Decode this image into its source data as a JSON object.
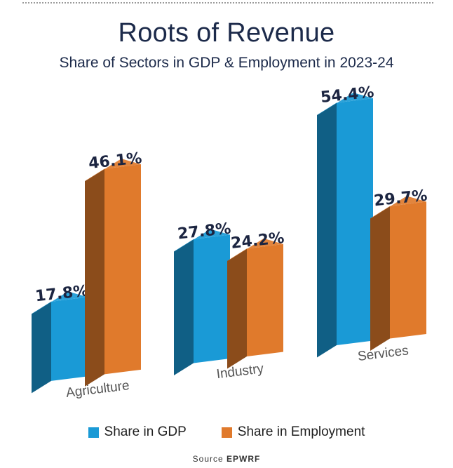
{
  "header": {
    "title": "Roots of Revenue",
    "subtitle": "Share of Sectors in GDP & Employment in 2023-24"
  },
  "chart_data": {
    "type": "bar",
    "categories": [
      "Agriculture",
      "Industry",
      "Services"
    ],
    "series": [
      {
        "name": "Share in GDP",
        "values": [
          17.8,
          27.8,
          54.4
        ],
        "labels": [
          "17.8%",
          "27.8%",
          "54.4%"
        ],
        "color": "#1a9ad6"
      },
      {
        "name": "Share in Employment",
        "values": [
          46.1,
          24.2,
          29.7
        ],
        "labels": [
          "46.1%",
          "24.2%",
          "29.7%"
        ],
        "color": "#e07a2c"
      }
    ],
    "title": "Roots of Revenue",
    "subtitle": "Share of Sectors in GDP & Employment in 2023-24",
    "xlabel": "",
    "ylabel": "",
    "grid": false,
    "legend_position": "bottom",
    "style": "3d-tilted"
  },
  "legend": {
    "items": [
      {
        "label": "Share in GDP",
        "color": "#1a9ad6"
      },
      {
        "label": "Share in Employment",
        "color": "#e07a2c"
      }
    ]
  },
  "footer": {
    "source_label": "Source",
    "source_name": "EPWRF"
  }
}
